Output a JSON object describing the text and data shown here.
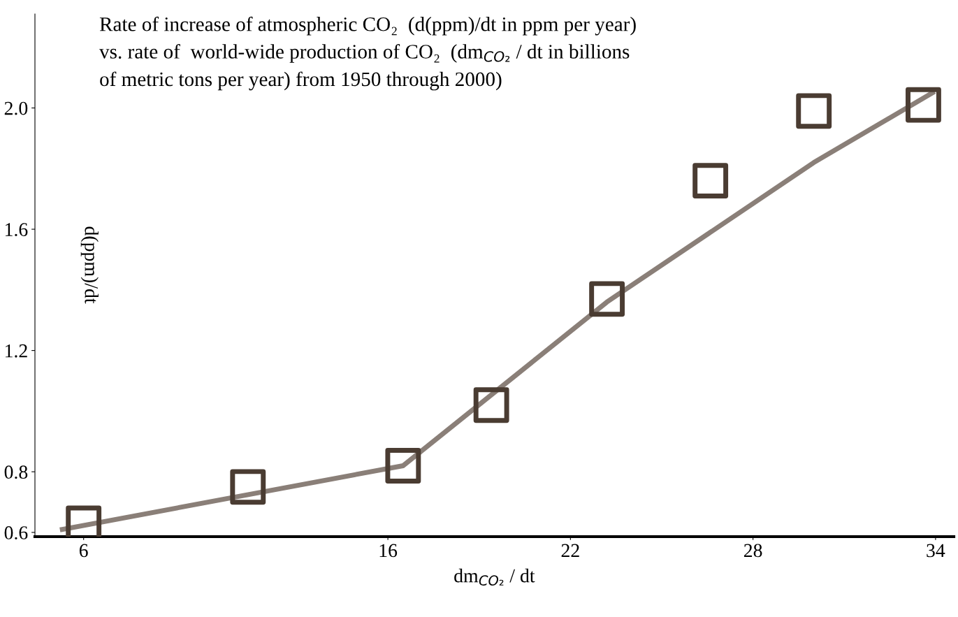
{
  "chart_data": {
    "type": "scatter",
    "title": "Rate of increase of atmospheric CO₂  (d(ppm)/dt in ppm per year)\nvs. rate of  world-wide production of CO₂  (dm$_{CO₂}$ / dt in billions\nof metric tons per year) from 1950 through 2000)",
    "xlabel": "dm$_{CO₂}$ / dt",
    "ylabel": "d(ppm)/dt",
    "series": [
      {
        "color": "#4a3c32",
        "marker": "square",
        "x": [
          6,
          11.4,
          16.5,
          19.4,
          23.2,
          26.6,
          30.0,
          33.6
        ],
        "values": [
          0.63,
          0.75,
          0.82,
          1.02,
          1.37,
          1.76,
          1.99,
          2.01
        ]
      },
      {
        "type": "line",
        "color": "#8a7f78",
        "marker": "none",
        "line_style": "solid",
        "x": [
          5.3,
          16.5,
          23.2,
          30.0,
          33.9
        ],
        "values": [
          0.61,
          0.82,
          1.36,
          1.82,
          2.05
        ]
      }
    ],
    "xlim": [
      4.4,
      34.6
    ],
    "ylim": [
      0.586,
      2.31
    ],
    "xticks": [
      6,
      16,
      22,
      28,
      34
    ],
    "yticks": [
      0.6,
      0.8,
      1.2,
      1.6,
      {
        "value": 2,
        "label": "2.0"
      }
    ],
    "grid": false,
    "legend": false
  }
}
